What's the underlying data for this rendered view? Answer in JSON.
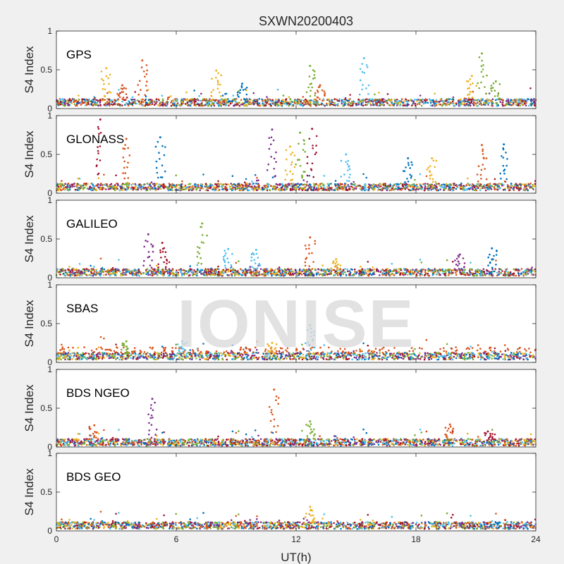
{
  "chart_data": {
    "type": "scatter",
    "title": "SXWN20200403",
    "xlabel": "UT(h)",
    "ylabel": "S4 Index",
    "xlim": [
      0,
      24
    ],
    "ylim": [
      0,
      1
    ],
    "xticks": [
      "0",
      "6",
      "12",
      "18",
      "24"
    ],
    "yticks": [
      "0",
      "0.5",
      "1"
    ],
    "watermark": "IONISE",
    "colors": [
      "#0072bd",
      "#d95319",
      "#edb120",
      "#7e2f8e",
      "#77ac30",
      "#4dbeee",
      "#a2142f"
    ],
    "panels": [
      {
        "label": "GPS",
        "baseline": 0.08,
        "spikes": [
          {
            "x": 2.5,
            "y": 0.52,
            "series": 2
          },
          {
            "x": 3.3,
            "y": 0.3,
            "series": 1
          },
          {
            "x": 4.3,
            "y": 0.62,
            "series": 1
          },
          {
            "x": 8.0,
            "y": 0.49,
            "series": 2
          },
          {
            "x": 9.3,
            "y": 0.32,
            "series": 0
          },
          {
            "x": 12.7,
            "y": 0.55,
            "series": 4
          },
          {
            "x": 13.2,
            "y": 0.3,
            "series": 1
          },
          {
            "x": 15.4,
            "y": 0.65,
            "series": 5
          },
          {
            "x": 20.8,
            "y": 0.42,
            "series": 2
          },
          {
            "x": 21.3,
            "y": 0.71,
            "series": 4
          },
          {
            "x": 22.0,
            "y": 0.35,
            "series": 4
          }
        ]
      },
      {
        "label": "GLONASS",
        "baseline": 0.08,
        "spikes": [
          {
            "x": 2.2,
            "y": 0.95,
            "series": 6
          },
          {
            "x": 3.5,
            "y": 0.7,
            "series": 1
          },
          {
            "x": 5.2,
            "y": 0.72,
            "series": 0
          },
          {
            "x": 10.8,
            "y": 0.82,
            "series": 3
          },
          {
            "x": 11.7,
            "y": 0.6,
            "series": 2
          },
          {
            "x": 12.2,
            "y": 0.78,
            "series": 4
          },
          {
            "x": 12.8,
            "y": 0.83,
            "series": 6
          },
          {
            "x": 14.5,
            "y": 0.5,
            "series": 5
          },
          {
            "x": 17.6,
            "y": 0.45,
            "series": 0
          },
          {
            "x": 18.8,
            "y": 0.45,
            "series": 2
          },
          {
            "x": 21.3,
            "y": 0.62,
            "series": 1
          },
          {
            "x": 22.4,
            "y": 0.63,
            "series": 0
          }
        ]
      },
      {
        "label": "GALILEO",
        "baseline": 0.07,
        "spikes": [
          {
            "x": 4.6,
            "y": 0.56,
            "series": 3
          },
          {
            "x": 5.3,
            "y": 0.45,
            "series": 6
          },
          {
            "x": 7.3,
            "y": 0.7,
            "series": 4
          },
          {
            "x": 8.6,
            "y": 0.37,
            "series": 5
          },
          {
            "x": 10.0,
            "y": 0.36,
            "series": 5
          },
          {
            "x": 12.7,
            "y": 0.52,
            "series": 1
          },
          {
            "x": 14.0,
            "y": 0.24,
            "series": 2
          },
          {
            "x": 20.2,
            "y": 0.3,
            "series": 3
          },
          {
            "x": 21.8,
            "y": 0.38,
            "series": 0
          }
        ]
      },
      {
        "label": "SBAS",
        "baseline": 0.08,
        "spikes": [
          {
            "x": 3.5,
            "y": 0.27,
            "series": 4
          },
          {
            "x": 6.3,
            "y": 0.27,
            "series": 5
          },
          {
            "x": 10.8,
            "y": 0.25,
            "series": 2
          },
          {
            "x": 12.7,
            "y": 0.48,
            "series": 5
          }
        ]
      },
      {
        "label": "BDS NGEO",
        "baseline": 0.06,
        "spikes": [
          {
            "x": 1.9,
            "y": 0.28,
            "series": 1
          },
          {
            "x": 4.8,
            "y": 0.62,
            "series": 3
          },
          {
            "x": 10.9,
            "y": 0.74,
            "series": 1
          },
          {
            "x": 12.7,
            "y": 0.33,
            "series": 4
          },
          {
            "x": 19.7,
            "y": 0.29,
            "series": 1
          },
          {
            "x": 21.6,
            "y": 0.2,
            "series": 6
          }
        ]
      },
      {
        "label": "BDS GEO",
        "baseline": 0.07,
        "spikes": [
          {
            "x": 12.7,
            "y": 0.31,
            "series": 2
          }
        ]
      }
    ]
  }
}
